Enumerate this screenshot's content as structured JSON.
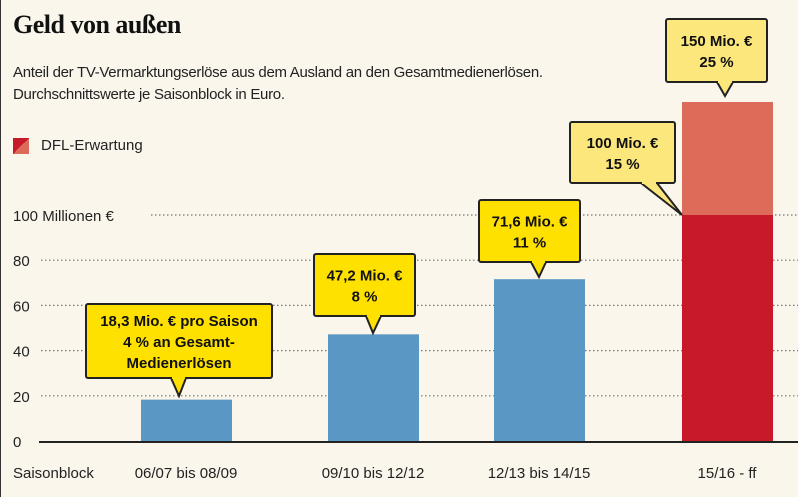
{
  "chart_data": {
    "type": "bar",
    "title": "Geld von außen",
    "subtitle": "Anteil der TV-Vermarktungserlöse aus dem Ausland an den Gesamtmedienerlösen. Durchschnittswerte je Saisonblock in Euro.",
    "xlabel": "Saisonblock",
    "ylabel": "",
    "ylim": [
      0,
      150
    ],
    "yticks": [
      0,
      20,
      40,
      60,
      80,
      100
    ],
    "ytick_labels": [
      "0",
      "20",
      "40",
      "60",
      "80",
      "100 Millionen €"
    ],
    "grid": true,
    "categories": [
      "06/07 bis 08/09",
      "09/10 bis 12/12",
      "12/13 bis 14/15",
      "15/16 - ff"
    ],
    "values": [
      18.3,
      47.2,
      71.6,
      150
    ],
    "dfl_segment": {
      "category": "15/16 - ff",
      "from": 100,
      "to": 150
    },
    "legend": [
      {
        "label": "DFL-Erwartung",
        "position": "top-left"
      }
    ],
    "annotations": [
      {
        "lines": [
          "18,3 Mio. € pro Saison",
          "4 % an Gesamt-",
          "Medienerlösen"
        ]
      },
      {
        "lines": [
          "47,2 Mio. €",
          "8 %"
        ]
      },
      {
        "lines": [
          "71,6 Mio. €",
          "11 %"
        ]
      },
      {
        "lines": [
          "100 Mio. €",
          "15 %"
        ]
      },
      {
        "lines": [
          "150 Mio. €",
          "25 %"
        ]
      }
    ],
    "colors": {
      "bar": "#5b97c4",
      "dfl_base": "#c8192a",
      "dfl_expectation": "#dc6b5a",
      "callout": "#ffe100",
      "callout_faded": "#fbe77c",
      "background": "#faf6ec"
    }
  }
}
